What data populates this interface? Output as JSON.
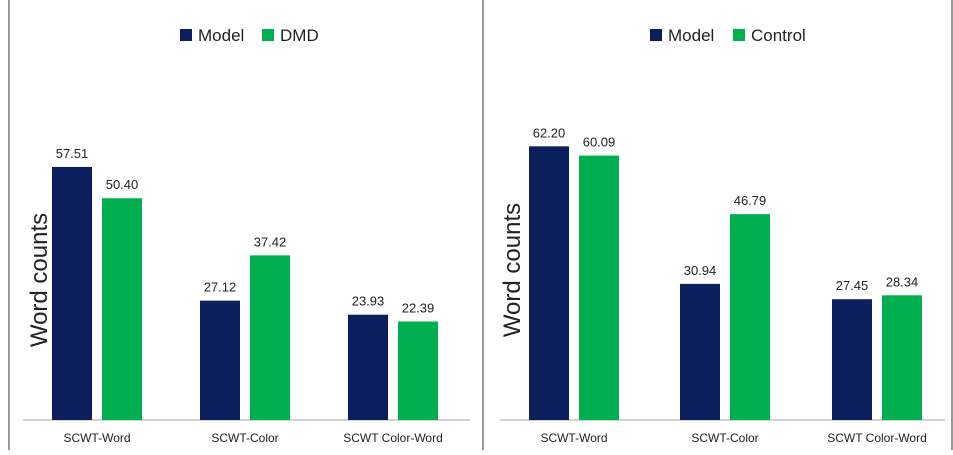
{
  "colors": {
    "model": "#0a1f5c",
    "comparison": "#00b050",
    "axis": "#a6a6a6",
    "border": "#333333",
    "text": "#222222"
  },
  "chart_data": [
    {
      "type": "bar",
      "ylabel": "Word counts",
      "categories": [
        "SCWT-Word",
        "SCWT-Color",
        "SCWT Color-Word"
      ],
      "series": [
        {
          "name": "Model",
          "values": [
            57.51,
            27.12,
            23.93
          ],
          "labels": [
            "57.51",
            "27.12",
            "23.93"
          ]
        },
        {
          "name": "DMD",
          "values": [
            50.4,
            37.42,
            22.39
          ],
          "labels": [
            "50.40",
            "37.42",
            "22.39"
          ]
        }
      ],
      "ylim": [
        0,
        70
      ],
      "grid": false,
      "legend": "top"
    },
    {
      "type": "bar",
      "ylabel": "Word counts",
      "categories": [
        "SCWT-Word",
        "SCWT-Color",
        "SCWT Color-Word"
      ],
      "series": [
        {
          "name": "Model",
          "values": [
            62.2,
            30.94,
            27.45
          ],
          "labels": [
            "62.20",
            "30.94",
            "27.45"
          ]
        },
        {
          "name": "Control",
          "values": [
            60.09,
            46.79,
            28.34
          ],
          "labels": [
            "60.09",
            "46.79",
            "28.34"
          ]
        }
      ],
      "ylim": [
        0,
        70
      ],
      "grid": false,
      "legend": "top"
    }
  ]
}
